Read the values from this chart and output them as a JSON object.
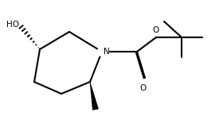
{
  "bg_color": "#ffffff",
  "line_color": "#000000",
  "line_width": 1.5,
  "figsize": [
    2.8,
    1.51
  ],
  "dpi": 100,
  "N_label": "N",
  "O_ester_label": "O",
  "O_carbonyl_label": "O",
  "HO_label": "HO"
}
